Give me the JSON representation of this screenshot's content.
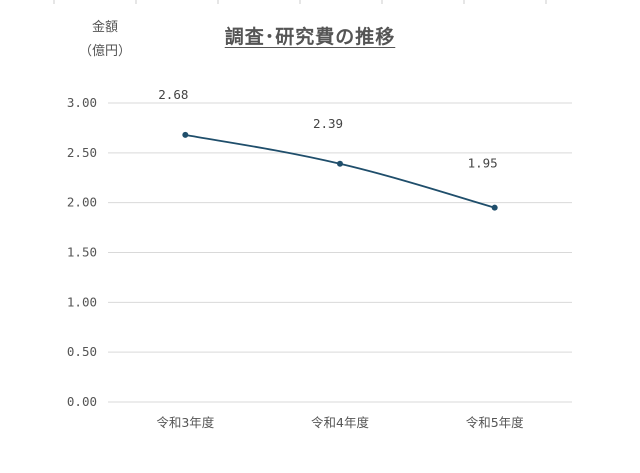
{
  "chart_data": {
    "type": "line",
    "title": "調査･研究費の推移",
    "ylabel_lines": [
      "金額",
      "（億円）"
    ],
    "xlabel": "",
    "categories": [
      "令和3年度",
      "令和4年度",
      "令和5年度"
    ],
    "series": [
      {
        "values": [
          2.68,
          2.39,
          1.95
        ]
      }
    ],
    "data_labels": [
      "2.68",
      "2.39",
      "1.95"
    ],
    "yticks": [
      "0.00",
      "0.50",
      "1.00",
      "1.50",
      "2.00",
      "2.50",
      "3.00"
    ],
    "ylim": [
      0,
      3.0
    ],
    "grid": true,
    "legend": "none",
    "line_color": "#1f4e6b",
    "grid_color": "#d9d9d9"
  }
}
